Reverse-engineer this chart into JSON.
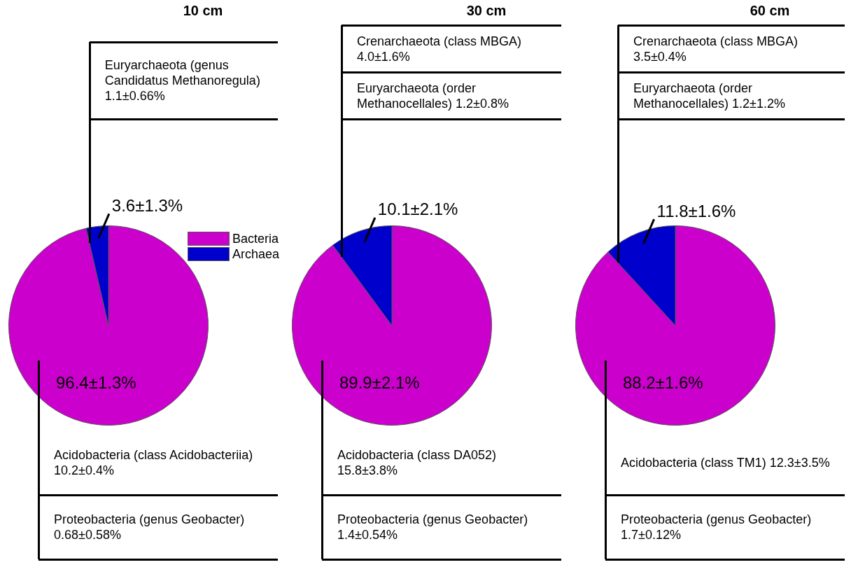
{
  "chart_data": [
    {
      "type": "pie",
      "title": "10 cm",
      "categories": [
        "Bacteria",
        "Archaea"
      ],
      "values": [
        96.4,
        3.6
      ],
      "colors": [
        "#cc00cc",
        "#0000cc"
      ],
      "value_labels": [
        "96.4±1.3%",
        "3.6±1.3%"
      ],
      "legend": "right",
      "annotations": [
        "Euryarchaeota (genus Candidatus Methanoregula) 1.1±0.66%",
        "Acidobacteria (class Acidobacteriia) 10.2±0.4%",
        "Proteobacteria (genus Geobacter) 0.68±0.58%"
      ]
    },
    {
      "type": "pie",
      "title": "30 cm",
      "categories": [
        null,
        null
      ],
      "values": [
        89.9,
        10.1
      ],
      "colors": [
        "#cc00cc",
        "#0000cc"
      ],
      "value_labels": [
        "89.9±2.1%",
        "10.1±2.1%"
      ],
      "annotations": [
        "Crenarchaeota (class MBGA) 4.0±1.6%",
        "Euryarchaeota (order Methanocellales) 1.2±0.8%",
        "Acidobacteria (class DA052) 15.8±3.8%",
        "Proteobacteria (genus Geobacter) 1.4±0.54%"
      ]
    },
    {
      "type": "pie",
      "title": "60 cm",
      "categories": [
        null,
        null
      ],
      "values": [
        88.2,
        11.8
      ],
      "colors": [
        "#cc00cc",
        "#0000cc"
      ],
      "value_labels": [
        "88.2±1.6%",
        "11.8±1.6%"
      ],
      "annotations": [
        "Crenarchaeota (class MBGA) 3.5±0.4%",
        "Euryarchaeota (order Methanocellales) 1.2±1.2%",
        "Acidobacteria (class TM1) 12.3±3.5%",
        "Proteobacteria (genus Geobacter) 1.7±0.12%"
      ]
    }
  ]
}
